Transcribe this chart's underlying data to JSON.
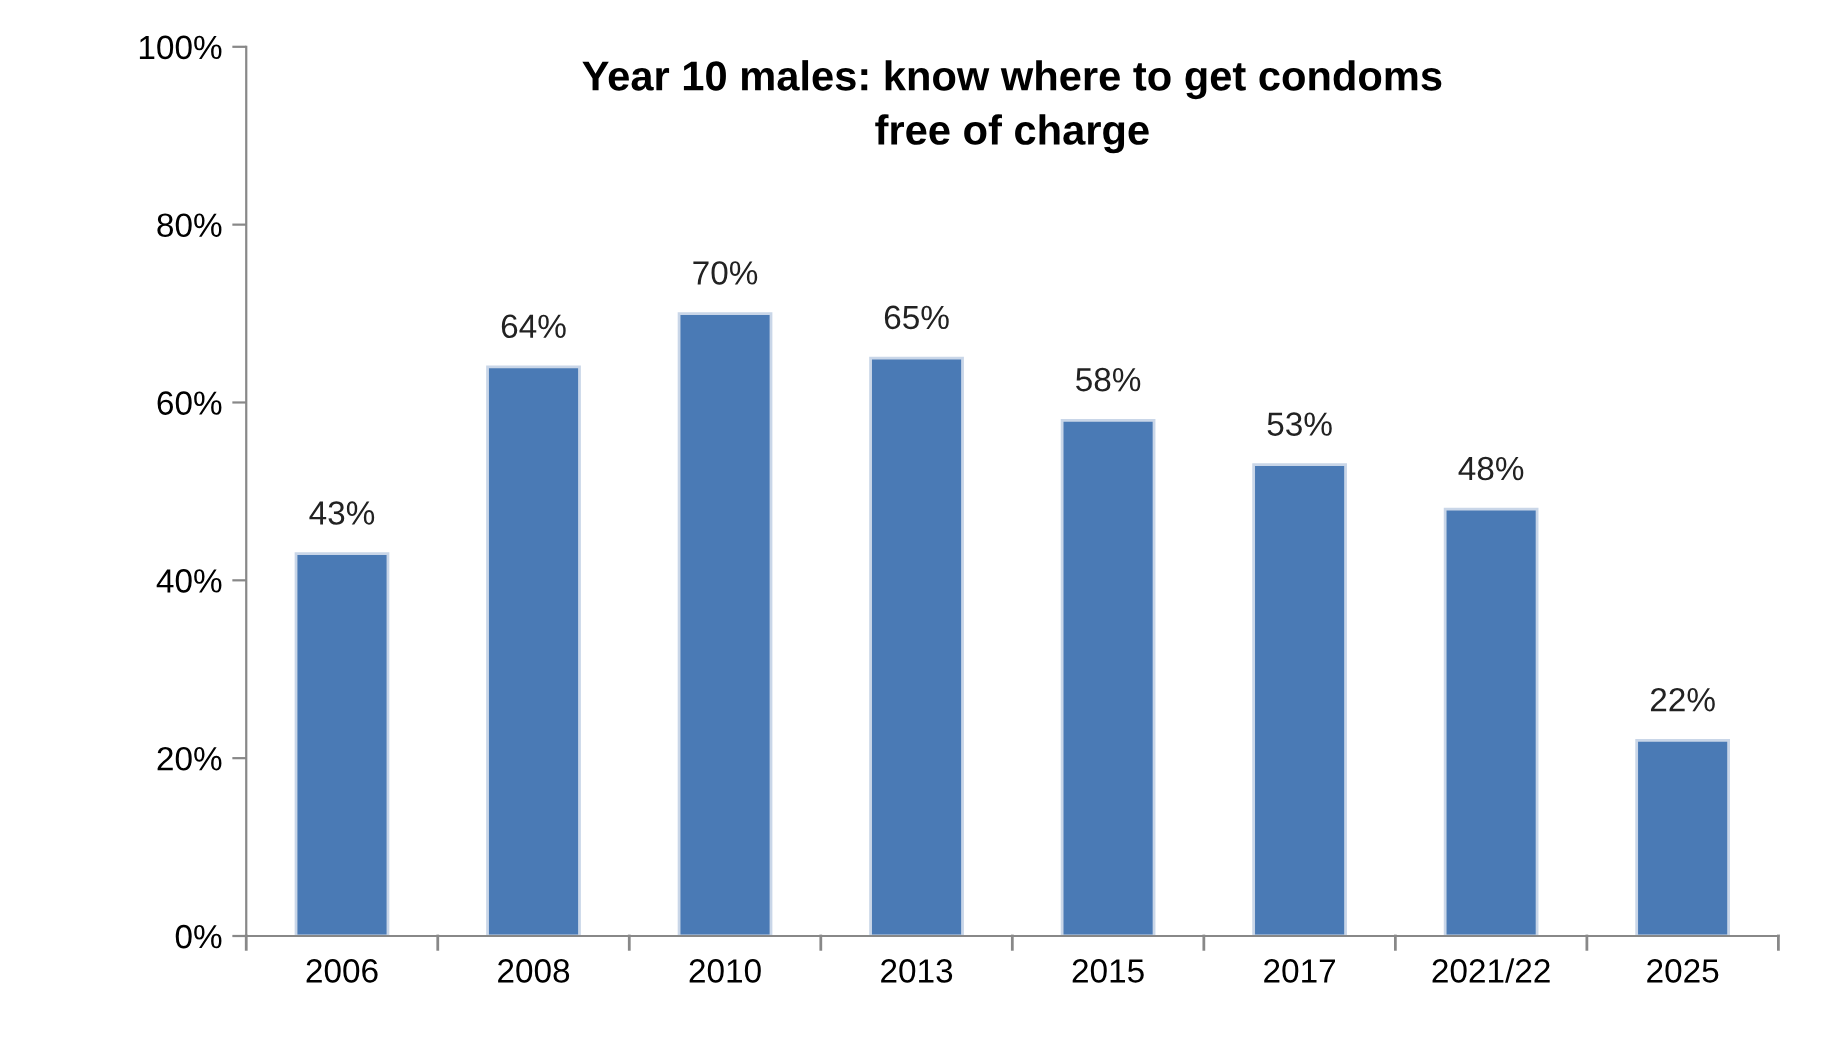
{
  "chart_data": {
    "type": "bar",
    "title": "Year 10 males: know where to get condoms\nfree of charge",
    "categories": [
      "2006",
      "2008",
      "2010",
      "2013",
      "2015",
      "2017",
      "2021/22",
      "2025"
    ],
    "values": [
      43,
      64,
      70,
      65,
      58,
      53,
      48,
      22
    ],
    "value_labels": [
      "43%",
      "64%",
      "70%",
      "65%",
      "58%",
      "53%",
      "48%",
      "22%"
    ],
    "color": "#4a7ab5",
    "ylim": [
      0,
      100
    ],
    "yticks": [
      {
        "value": 0,
        "label": "0%"
      },
      {
        "value": 20,
        "label": "20%"
      },
      {
        "value": 40,
        "label": "40%"
      },
      {
        "value": 60,
        "label": "60%"
      },
      {
        "value": 80,
        "label": "80%"
      },
      {
        "value": 100,
        "label": "100%"
      }
    ],
    "grid": false,
    "legend": false
  }
}
